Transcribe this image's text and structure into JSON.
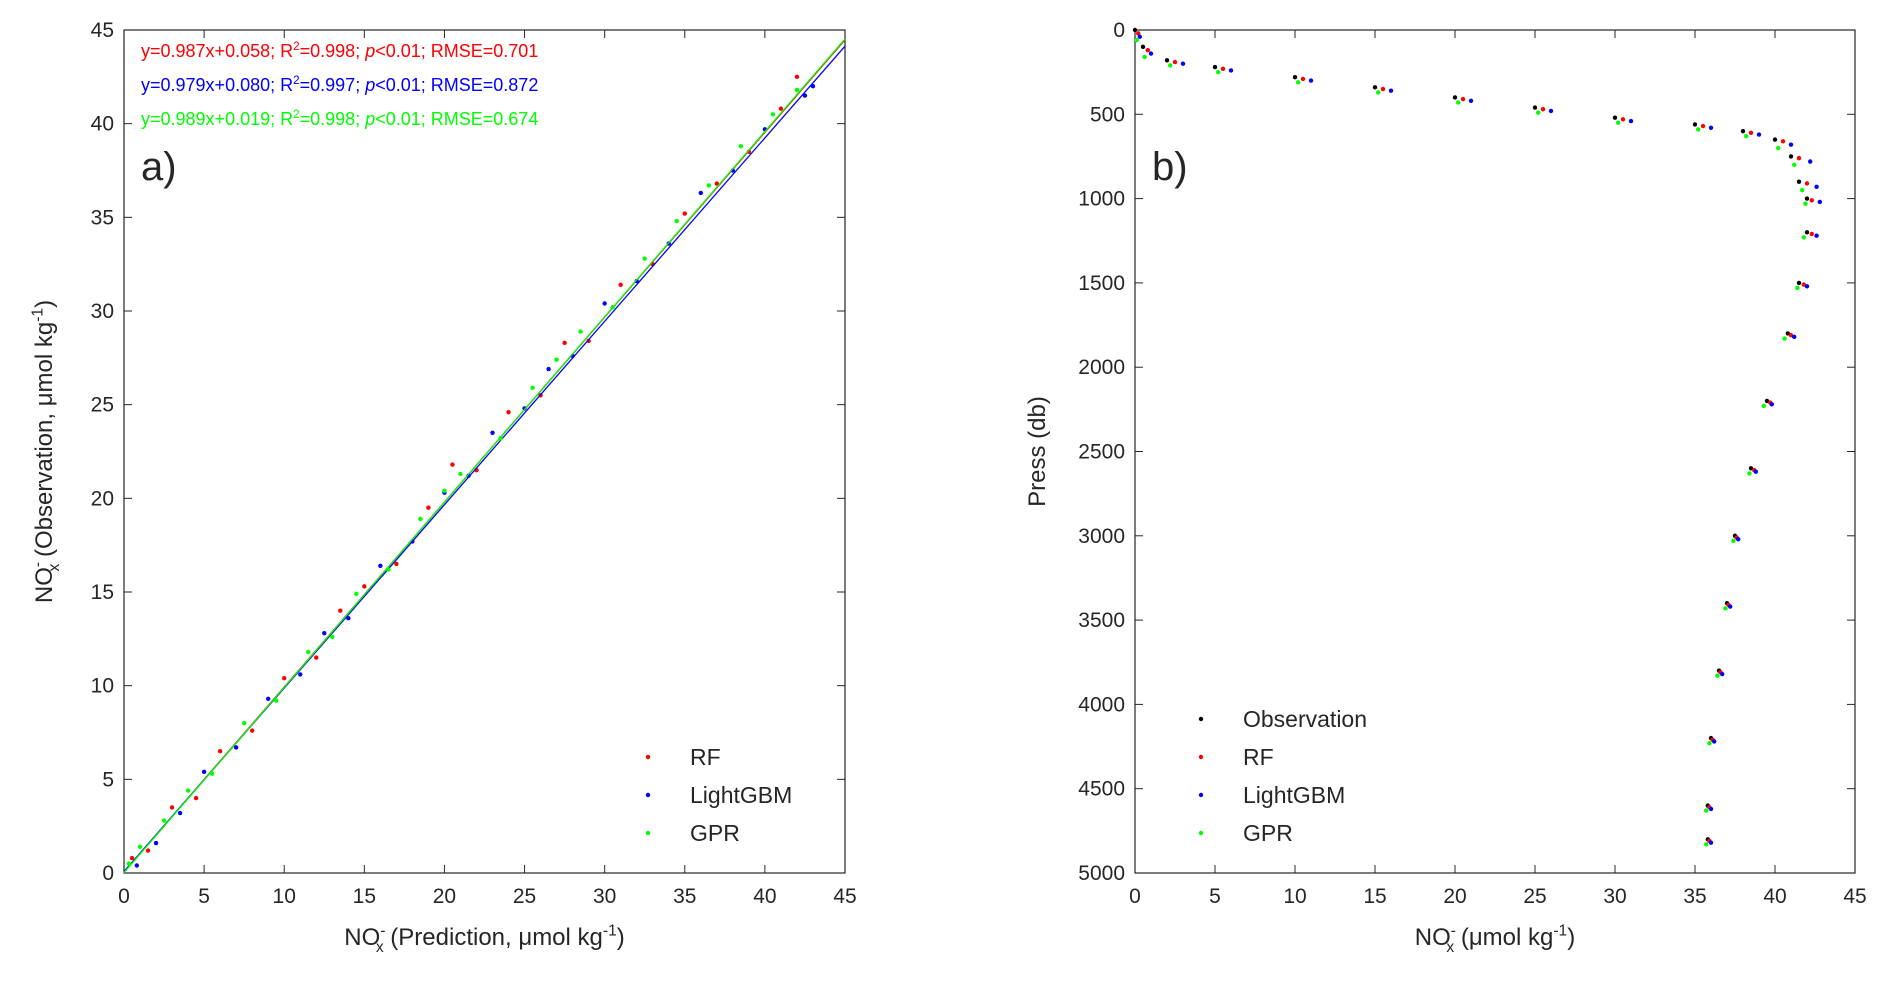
{
  "chart_data": [
    {
      "type": "scatter",
      "panel_label": "a)",
      "xlabel": [
        {
          "text": "NO"
        },
        {
          "text": "-",
          "style": "sup"
        },
        {
          "text": "x",
          "style": "sub"
        },
        {
          "text": " (Prediction, μmol kg"
        },
        {
          "text": "-1",
          "style": "sup"
        },
        {
          "text": ")"
        }
      ],
      "ylabel": [
        {
          "text": "NO"
        },
        {
          "text": "-",
          "style": "sup"
        },
        {
          "text": "x",
          "style": "sub"
        },
        {
          "text": " (Observation, μmol kg"
        },
        {
          "text": "-1",
          "style": "sup"
        },
        {
          "text": ")"
        }
      ],
      "xlim": [
        0,
        45
      ],
      "xticks": [
        0,
        5,
        10,
        15,
        20,
        25,
        30,
        35,
        40,
        45
      ],
      "ylim": [
        0,
        45
      ],
      "yticks": [
        0,
        5,
        10,
        15,
        20,
        25,
        30,
        35,
        40,
        45
      ],
      "y_reversed": false,
      "legend": "lower right",
      "series": [
        {
          "name": "RF",
          "color": "#ff0000",
          "x": [
            0.5,
            1.5,
            3,
            4.5,
            6,
            8,
            10,
            12,
            13.5,
            15,
            17,
            19,
            20.5,
            22,
            24,
            26,
            27.5,
            29,
            31,
            33,
            35,
            37,
            39,
            41,
            42
          ],
          "values": [
            0.8,
            1.2,
            3.5,
            4,
            6.5,
            7.6,
            10.4,
            11.5,
            14,
            15.3,
            16.5,
            19.5,
            21.8,
            21.5,
            24.6,
            25.5,
            28.3,
            28.4,
            31.4,
            32.5,
            35.2,
            36.8,
            38.5,
            40.8,
            42.5
          ],
          "fit": {
            "slope": 0.987,
            "intercept": 0.058
          },
          "annotation": [
            {
              "text": "y=0.987x+0.058; R"
            },
            {
              "text": "2",
              "style": "sup"
            },
            {
              "text": "=0.998; "
            },
            {
              "text": "p",
              "style": "italic"
            },
            {
              "text": "<0.01; RMSE=0.701"
            }
          ]
        },
        {
          "name": "LightGBM",
          "color": "#0000ff",
          "x": [
            0.8,
            2,
            3.5,
            5,
            7,
            9,
            11,
            12.5,
            14,
            16,
            18,
            20,
            21.5,
            23,
            25,
            26.5,
            28,
            30,
            32,
            34,
            36,
            38,
            40,
            42.5,
            43
          ],
          "values": [
            0.4,
            1.6,
            3.2,
            5.4,
            6.7,
            9.3,
            10.6,
            12.8,
            13.6,
            16.4,
            17.7,
            20.3,
            21.2,
            23.5,
            24.8,
            26.9,
            27.6,
            30.4,
            31.6,
            33.6,
            36.3,
            37.5,
            39.7,
            41.5,
            42
          ],
          "fit": {
            "slope": 0.979,
            "intercept": 0.08
          },
          "annotation": [
            {
              "text": "y=0.979x+0.080; R"
            },
            {
              "text": "2",
              "style": "sup"
            },
            {
              "text": "=0.997; "
            },
            {
              "text": "p",
              "style": "italic"
            },
            {
              "text": "<0.01; RMSE=0.872"
            }
          ]
        },
        {
          "name": "GPR",
          "color": "#00ff00",
          "x": [
            0.3,
            1,
            2.5,
            4,
            5.5,
            7.5,
            9.5,
            11.5,
            13,
            14.5,
            16.5,
            18.5,
            20,
            21,
            23.5,
            25.5,
            27,
            28.5,
            30.5,
            32.5,
            34.5,
            36.5,
            38.5,
            40.5,
            42
          ],
          "values": [
            0.5,
            1.4,
            2.8,
            4.4,
            5.3,
            8,
            9.2,
            11.8,
            12.6,
            14.9,
            16.2,
            18.9,
            20.4,
            21.3,
            23.2,
            25.9,
            27.4,
            28.9,
            30.2,
            32.8,
            34.8,
            36.7,
            38.8,
            40.5,
            41.8
          ],
          "fit": {
            "slope": 0.989,
            "intercept": 0.019
          },
          "annotation": [
            {
              "text": "y=0.989x+0.019; R"
            },
            {
              "text": "2",
              "style": "sup"
            },
            {
              "text": "=0.998; "
            },
            {
              "text": "p",
              "style": "italic"
            },
            {
              "text": "<0.01; RMSE=0.674"
            }
          ]
        }
      ]
    },
    {
      "type": "scatter",
      "panel_label": "b)",
      "xlabel": [
        {
          "text": "NO"
        },
        {
          "text": "-",
          "style": "sup"
        },
        {
          "text": "x",
          "style": "sub"
        },
        {
          "text": " (μmol kg"
        },
        {
          "text": "-1",
          "style": "sup"
        },
        {
          "text": ")"
        }
      ],
      "ylabel": [
        {
          "text": "Press (db)"
        }
      ],
      "xlim": [
        0,
        45
      ],
      "xticks": [
        0,
        5,
        10,
        15,
        20,
        25,
        30,
        35,
        40,
        45
      ],
      "ylim": [
        0,
        5000
      ],
      "yticks": [
        0,
        500,
        1000,
        1500,
        2000,
        2500,
        3000,
        3500,
        4000,
        4500,
        5000
      ],
      "y_reversed": true,
      "legend": "lower left",
      "series": [
        {
          "name": "Observation",
          "color": "#000000",
          "x": [
            0,
            0.5,
            2,
            5,
            10,
            15,
            20,
            25,
            30,
            35,
            38,
            40,
            41,
            41.5,
            42,
            42,
            41.5,
            40.8,
            39.5,
            38.5,
            37.5,
            37,
            36.5,
            36,
            35.8,
            35.8
          ],
          "values": [
            0,
            100,
            180,
            220,
            280,
            340,
            400,
            460,
            520,
            560,
            600,
            650,
            750,
            900,
            1000,
            1200,
            1500,
            1800,
            2200,
            2600,
            3000,
            3400,
            3800,
            4200,
            4600,
            4800
          ]
        },
        {
          "name": "RF",
          "color": "#ff0000",
          "x": [
            0.2,
            0.8,
            2.5,
            5.5,
            10.5,
            15.5,
            20.5,
            25.5,
            30.5,
            35.5,
            38.5,
            40.5,
            41.5,
            42,
            42.3,
            42.3,
            41.8,
            41,
            39.7,
            38.7,
            37.6,
            37.1,
            36.6,
            36.1,
            35.9,
            35.9
          ],
          "values": [
            20,
            120,
            190,
            230,
            290,
            350,
            410,
            470,
            530,
            570,
            610,
            660,
            760,
            910,
            1010,
            1210,
            1510,
            1810,
            2210,
            2610,
            3010,
            3410,
            3810,
            4210,
            4610,
            4810
          ]
        },
        {
          "name": "LightGBM",
          "color": "#0000ff",
          "x": [
            0.3,
            1,
            3,
            6,
            11,
            16,
            21,
            26,
            31,
            36,
            39,
            41,
            42.2,
            42.6,
            42.8,
            42.6,
            42,
            41.2,
            39.8,
            38.8,
            37.7,
            37.2,
            36.7,
            36.2,
            36,
            36
          ],
          "values": [
            40,
            140,
            200,
            240,
            300,
            360,
            420,
            480,
            540,
            580,
            620,
            680,
            780,
            930,
            1020,
            1220,
            1520,
            1820,
            2220,
            2620,
            3020,
            3420,
            3820,
            4220,
            4620,
            4820
          ]
        },
        {
          "name": "GPR",
          "color": "#00ff00",
          "x": [
            0.1,
            0.6,
            2.2,
            5.2,
            10.2,
            15.2,
            20.2,
            25.2,
            30.2,
            35.2,
            38.2,
            40.2,
            41.2,
            41.7,
            41.9,
            41.8,
            41.4,
            40.6,
            39.3,
            38.4,
            37.4,
            36.9,
            36.4,
            35.9,
            35.7,
            35.7
          ],
          "values": [
            60,
            160,
            210,
            250,
            310,
            370,
            430,
            490,
            550,
            590,
            630,
            700,
            800,
            950,
            1030,
            1230,
            1530,
            1830,
            2230,
            2630,
            3030,
            3430,
            3830,
            4230,
            4630,
            4830
          ]
        }
      ]
    }
  ]
}
